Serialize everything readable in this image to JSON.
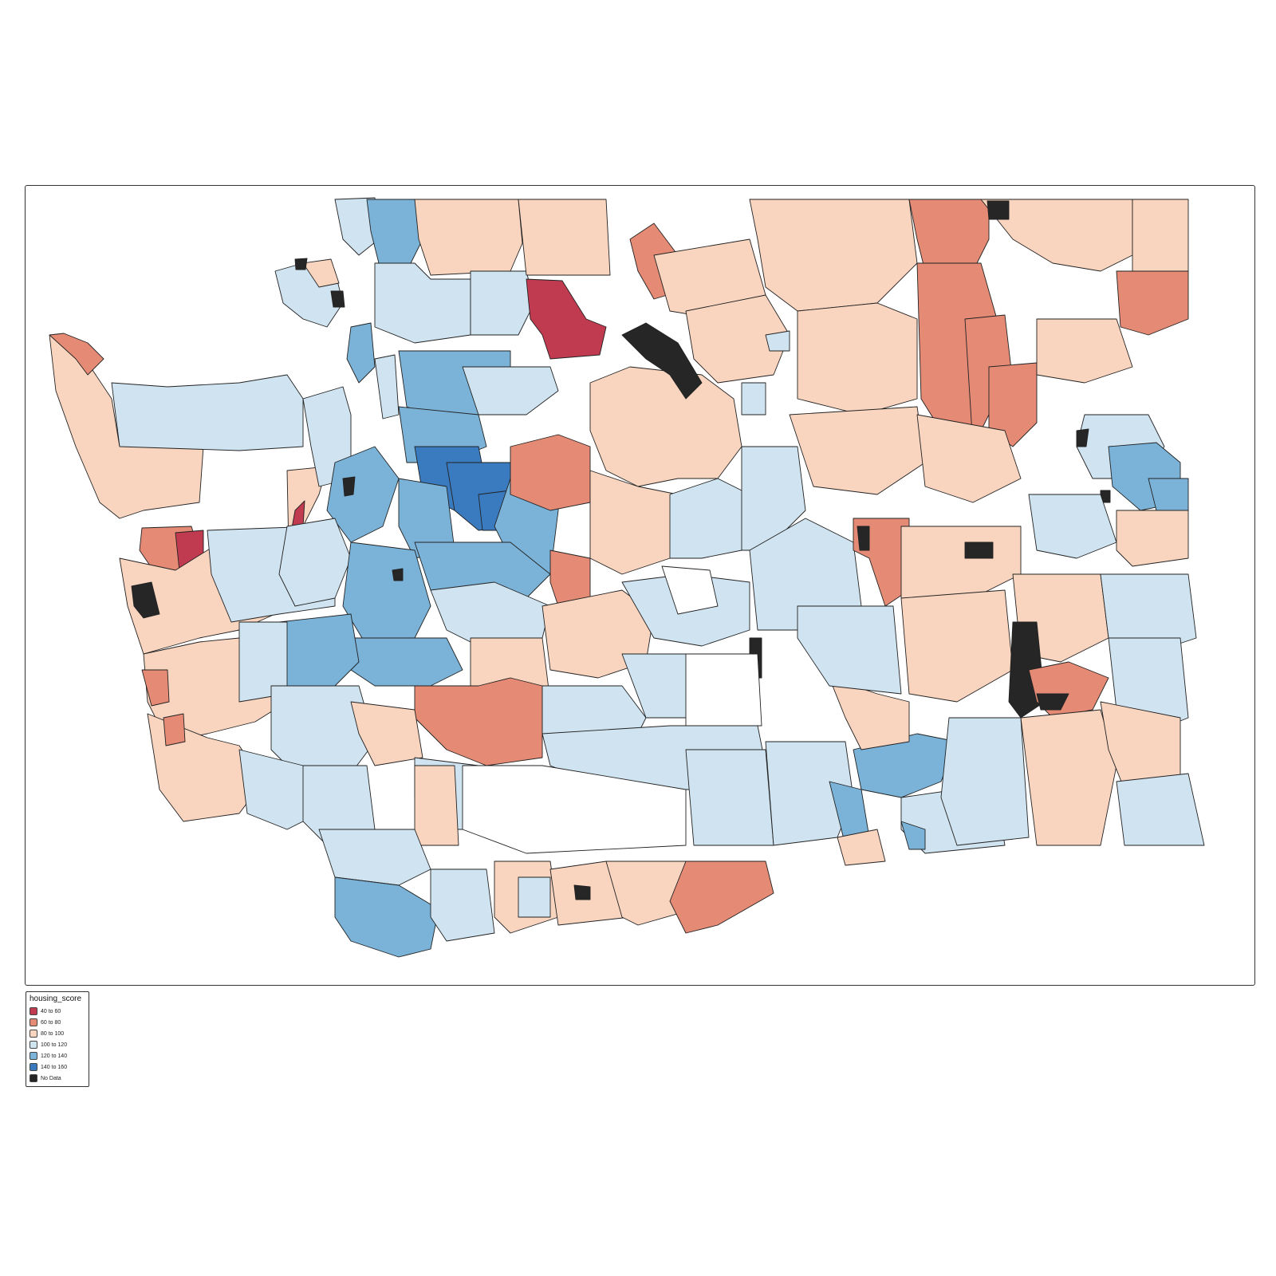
{
  "legend": {
    "title": "housing_score",
    "classes": [
      {
        "label": "40 to 60",
        "color": "#c03a50"
      },
      {
        "label": "60 to 80",
        "color": "#e48a75"
      },
      {
        "label": "80 to 100",
        "color": "#f9d5c0"
      },
      {
        "label": "100 to 120",
        "color": "#cfe3f0"
      },
      {
        "label": "120 to 140",
        "color": "#7bb3d8"
      },
      {
        "label": "140 to 160",
        "color": "#3a7bc0"
      },
      {
        "label": "No Data",
        "color": "#262626"
      }
    ]
  }
}
